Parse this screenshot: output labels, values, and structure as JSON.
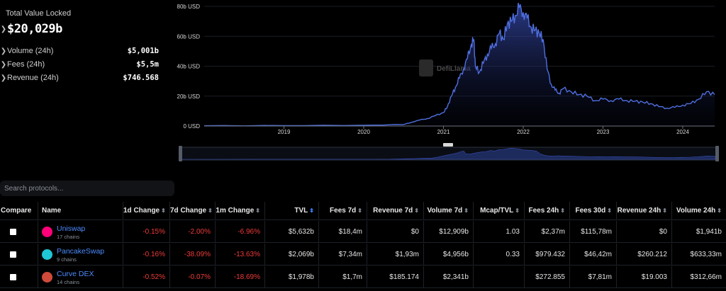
{
  "stats": {
    "tvl_label": "Total Value Locked",
    "tvl_value": "$20,029b",
    "rows": [
      {
        "label": "Volume (24h)",
        "value": "$5,001b"
      },
      {
        "label": "Fees (24h)",
        "value": "$5,5m"
      },
      {
        "label": "Revenue (24h)",
        "value": "$746.568"
      }
    ]
  },
  "chart": {
    "watermark": "DefiLlama",
    "y_ticks": [
      "80b USD",
      "60b USD",
      "40b USD",
      "20b USD",
      "0 USD"
    ],
    "x_ticks": [
      "2019",
      "2020",
      "2021",
      "2022",
      "2023",
      "2024"
    ],
    "line_color": "#4f6fe0",
    "range_handle": "≡"
  },
  "chart_data": {
    "type": "area",
    "ylabel": "",
    "xlabel": "",
    "ylim": [
      0,
      80
    ],
    "x_domain": [
      2018.0,
      2024.4
    ],
    "y_unit": "b USD",
    "series": [
      {
        "x": [
          2018.0,
          2019.0,
          2020.0,
          2020.5,
          2020.6,
          2020.7,
          2020.8,
          2020.9,
          2021.0,
          2021.05,
          2021.1,
          2021.15,
          2021.2,
          2021.25,
          2021.3,
          2021.35,
          2021.38,
          2021.4,
          2021.45,
          2021.5,
          2021.55,
          2021.6,
          2021.65,
          2021.7,
          2021.75,
          2021.8,
          2021.85,
          2021.9,
          2021.95,
          2022.0,
          2022.05,
          2022.1,
          2022.15,
          2022.2,
          2022.25,
          2022.3,
          2022.35,
          2022.4,
          2022.45,
          2022.5,
          2022.6,
          2022.7,
          2022.8,
          2022.9,
          2023.0,
          2023.1,
          2023.2,
          2023.3,
          2023.4,
          2023.5,
          2023.6,
          2023.7,
          2023.8,
          2023.9,
          2024.0,
          2024.1,
          2024.2,
          2024.3,
          2024.4
        ],
        "values": [
          0.2,
          0.3,
          0.5,
          1.0,
          2.5,
          4.0,
          5.0,
          7.0,
          9.0,
          13.0,
          20.0,
          26.0,
          32.0,
          38.0,
          45.0,
          55.0,
          58.0,
          40.0,
          36.0,
          42.0,
          48.0,
          52.0,
          55.0,
          62.0,
          58.0,
          68.0,
          70.0,
          74.0,
          79.0,
          76.0,
          72.0,
          66.0,
          64.0,
          62.0,
          58.0,
          38.0,
          28.0,
          24.0,
          22.0,
          25.0,
          23.0,
          21.0,
          20.0,
          17.0,
          18.0,
          17.0,
          18.0,
          17.0,
          16.5,
          16.0,
          15.0,
          13.0,
          12.0,
          12.5,
          14.0,
          15.0,
          18.0,
          23.0,
          21.0
        ]
      }
    ]
  },
  "search": {
    "placeholder": "Search protocols..."
  },
  "table": {
    "columns": [
      "Compare",
      "Name",
      "1d Change",
      "7d Change",
      "1m Change",
      "TVL",
      "Fees 7d",
      "Revenue 7d",
      "Volume 7d",
      "Mcap/TVL",
      "Fees 24h",
      "Fees 30d",
      "Revenue 24h",
      "Volume 24h"
    ],
    "rows": [
      {
        "name": "Uniswap",
        "chains": "17 chains",
        "logo_color": "#ff007a",
        "cells": [
          "-0.15%",
          "-2.00%",
          "-6.96%",
          "$5,632b",
          "$18,4m",
          "$0",
          "$12,909b",
          "1.03",
          "$2,37m",
          "$115,78m",
          "$0",
          "$1,941b"
        ]
      },
      {
        "name": "PancakeSwap",
        "chains": "9 chains",
        "logo_color": "#1fc7d4",
        "cells": [
          "-0.16%",
          "-38.09%",
          "-13.63%",
          "$2,069b",
          "$7,34m",
          "$1,93m",
          "$4,956b",
          "0.33",
          "$979.432",
          "$46,42m",
          "$260.212",
          "$633,33m"
        ]
      },
      {
        "name": "Curve DEX",
        "chains": "14 chains",
        "logo_color": "#d04a3a",
        "cells": [
          "-0.52%",
          "-0.07%",
          "-18.69%",
          "$1,978b",
          "$1,7m",
          "$185.174",
          "$2,341b",
          "",
          "$272.855",
          "$7,81m",
          "$19.003",
          "$312,66m"
        ]
      }
    ]
  }
}
